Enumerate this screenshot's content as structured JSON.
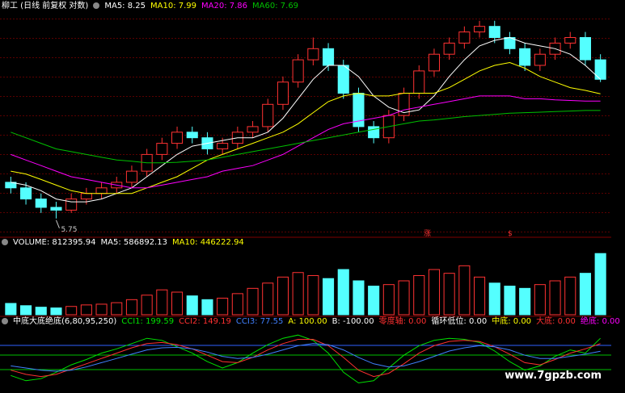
{
  "chart_data": [
    {
      "type": "candlestick",
      "title": "柳工 (日线 前复权 对数)",
      "open": [
        6.4,
        6.3,
        6.1,
        5.95,
        5.9,
        6.1,
        6.2,
        6.3,
        6.4,
        6.6,
        6.9,
        7.1,
        7.3,
        7.2,
        7.0,
        7.1,
        7.3,
        7.4,
        7.8,
        8.2,
        8.6,
        8.8,
        8.5,
        8.0,
        7.4,
        7.2,
        7.6,
        8.0,
        8.4,
        8.7,
        8.9,
        9.1,
        9.2,
        9.0,
        8.8,
        8.5,
        8.7,
        8.9,
        9.0,
        8.6
      ],
      "high": [
        6.5,
        6.4,
        6.2,
        6.05,
        6.2,
        6.3,
        6.4,
        6.5,
        6.7,
        7.0,
        7.2,
        7.4,
        7.4,
        7.3,
        7.2,
        7.4,
        7.5,
        7.9,
        8.3,
        8.7,
        9.0,
        8.9,
        8.6,
        8.1,
        7.5,
        7.7,
        8.1,
        8.5,
        8.8,
        9.0,
        9.2,
        9.3,
        9.3,
        9.1,
        8.9,
        8.8,
        9.0,
        9.1,
        9.1,
        8.7
      ],
      "low": [
        6.2,
        6.0,
        5.85,
        5.75,
        5.85,
        6.0,
        6.1,
        6.2,
        6.3,
        6.5,
        6.8,
        7.0,
        7.1,
        6.9,
        6.9,
        7.0,
        7.2,
        7.3,
        7.7,
        8.1,
        8.5,
        8.4,
        7.9,
        7.3,
        7.1,
        7.1,
        7.5,
        7.9,
        8.3,
        8.6,
        8.8,
        9.0,
        8.9,
        8.7,
        8.4,
        8.4,
        8.6,
        8.8,
        8.5,
        8.2
      ],
      "close": [
        6.3,
        6.1,
        5.95,
        5.9,
        6.1,
        6.2,
        6.3,
        6.4,
        6.6,
        6.9,
        7.1,
        7.3,
        7.2,
        7.0,
        7.1,
        7.3,
        7.4,
        7.8,
        8.2,
        8.6,
        8.8,
        8.5,
        8.0,
        7.4,
        7.2,
        7.6,
        8.0,
        8.4,
        8.7,
        8.9,
        9.1,
        9.2,
        9.0,
        8.8,
        8.5,
        8.7,
        8.9,
        9.0,
        8.6,
        8.25
      ],
      "series": [
        {
          "label": "MA5: 8.25",
          "color": "#ffffff",
          "values": [
            6.4,
            6.35,
            6.25,
            6.1,
            6.05,
            6.05,
            6.1,
            6.2,
            6.3,
            6.5,
            6.7,
            6.9,
            7.05,
            7.1,
            7.15,
            7.2,
            7.2,
            7.3,
            7.55,
            7.9,
            8.25,
            8.5,
            8.5,
            8.3,
            7.95,
            7.75,
            7.65,
            7.7,
            7.95,
            8.3,
            8.6,
            8.85,
            8.95,
            9.0,
            8.9,
            8.85,
            8.8,
            8.7,
            8.5,
            8.25
          ]
        },
        {
          "label": "MA10: 7.99",
          "color": "#ffff00",
          "values": [
            6.6,
            6.55,
            6.45,
            6.35,
            6.25,
            6.2,
            6.2,
            6.2,
            6.2,
            6.3,
            6.4,
            6.5,
            6.65,
            6.8,
            6.9,
            7.0,
            7.1,
            7.2,
            7.3,
            7.45,
            7.65,
            7.85,
            7.95,
            8.0,
            7.95,
            7.95,
            8.0,
            8.0,
            8.0,
            8.1,
            8.25,
            8.4,
            8.5,
            8.55,
            8.45,
            8.3,
            8.2,
            8.1,
            8.05,
            7.99
          ]
        },
        {
          "label": "MA20: 7.86",
          "color": "#ff00ff",
          "values": [
            6.9,
            6.8,
            6.7,
            6.6,
            6.5,
            6.45,
            6.4,
            6.35,
            6.3,
            6.3,
            6.35,
            6.4,
            6.45,
            6.5,
            6.6,
            6.65,
            6.7,
            6.8,
            6.9,
            7.05,
            7.2,
            7.35,
            7.45,
            7.5,
            7.55,
            7.6,
            7.7,
            7.75,
            7.8,
            7.85,
            7.9,
            7.95,
            7.95,
            7.95,
            7.9,
            7.9,
            7.88,
            7.87,
            7.86,
            7.86
          ]
        },
        {
          "label": "MA60: 7.69",
          "color": "#00c000",
          "values": [
            7.3,
            7.2,
            7.1,
            7.0,
            6.95,
            6.9,
            6.85,
            6.8,
            6.78,
            6.75,
            6.75,
            6.76,
            6.78,
            6.8,
            6.85,
            6.9,
            6.95,
            7.0,
            7.05,
            7.1,
            7.15,
            7.2,
            7.25,
            7.3,
            7.35,
            7.4,
            7.45,
            7.5,
            7.52,
            7.55,
            7.58,
            7.6,
            7.62,
            7.64,
            7.65,
            7.66,
            7.67,
            7.68,
            7.69,
            7.69
          ]
        }
      ],
      "annotations": [
        "涨",
        "$"
      ],
      "ylim": [
        5.5,
        9.5
      ]
    },
    {
      "type": "bar",
      "title": "VOLUME: 812395.94",
      "readouts": [
        {
          "label": "MA5: 586892.13",
          "color": "#ffffff"
        },
        {
          "label": "MA10: 446222.94",
          "color": "#ffff00"
        }
      ],
      "values": [
        150000,
        120000,
        100000,
        90000,
        110000,
        130000,
        140000,
        160000,
        200000,
        260000,
        330000,
        300000,
        250000,
        200000,
        220000,
        280000,
        350000,
        420000,
        500000,
        560000,
        520000,
        480000,
        600000,
        450000,
        380000,
        400000,
        450000,
        520000,
        600000,
        550000,
        650000,
        500000,
        420000,
        380000,
        350000,
        400000,
        450000,
        500000,
        550000,
        812395.94
      ],
      "ylim": [
        0,
        900000
      ]
    },
    {
      "type": "line",
      "title": "中底大底绝底(6,80,95,250)",
      "series": [
        {
          "label": "CCI1: 199.59",
          "color": "#00e000",
          "values": [
            -150,
            -200,
            -180,
            -120,
            -50,
            0,
            60,
            100,
            150,
            200,
            180,
            120,
            60,
            -20,
            -80,
            -30,
            60,
            140,
            200,
            230,
            180,
            60,
            -120,
            -220,
            -200,
            -80,
            40,
            130,
            180,
            200,
            190,
            160,
            80,
            -20,
            -100,
            -60,
            30,
            90,
            60,
            199.59
          ]
        },
        {
          "label": "CCI2: 149.19",
          "color": "#ff3030",
          "values": [
            -100,
            -140,
            -160,
            -140,
            -90,
            -40,
            10,
            60,
            110,
            150,
            160,
            140,
            100,
            40,
            -20,
            -30,
            20,
            90,
            150,
            190,
            190,
            130,
            20,
            -100,
            -160,
            -130,
            -40,
            60,
            130,
            170,
            180,
            170,
            120,
            50,
            -30,
            -50,
            0,
            60,
            100,
            149.19
          ]
        },
        {
          "label": "CCI3: 77.55",
          "color": "#4080ff",
          "values": [
            -60,
            -80,
            -100,
            -110,
            -100,
            -70,
            -30,
            10,
            50,
            90,
            110,
            115,
            100,
            70,
            30,
            10,
            20,
            50,
            90,
            130,
            150,
            140,
            90,
            20,
            -40,
            -70,
            -60,
            -20,
            30,
            80,
            110,
            130,
            120,
            90,
            40,
            10,
            10,
            30,
            50,
            77.55
          ]
        }
      ],
      "readouts": [
        {
          "label": "A: 100.00",
          "color": "#ffff00"
        },
        {
          "label": "B: -100.00",
          "color": "#ffffff"
        },
        {
          "label": "零度轴: 0.00",
          "color": "#ff3030"
        },
        {
          "label": "循环低位: 0.00",
          "color": "#ffffff"
        },
        {
          "label": "中底: 0.00",
          "color": "#ffff00"
        },
        {
          "label": "大底: 0.00",
          "color": "#ff3030"
        },
        {
          "label": "绝底: 0.00",
          "color": "#ff00ff"
        }
      ],
      "ylim": [
        -300,
        300
      ]
    }
  ],
  "watermark": "www.7gpzb.com"
}
